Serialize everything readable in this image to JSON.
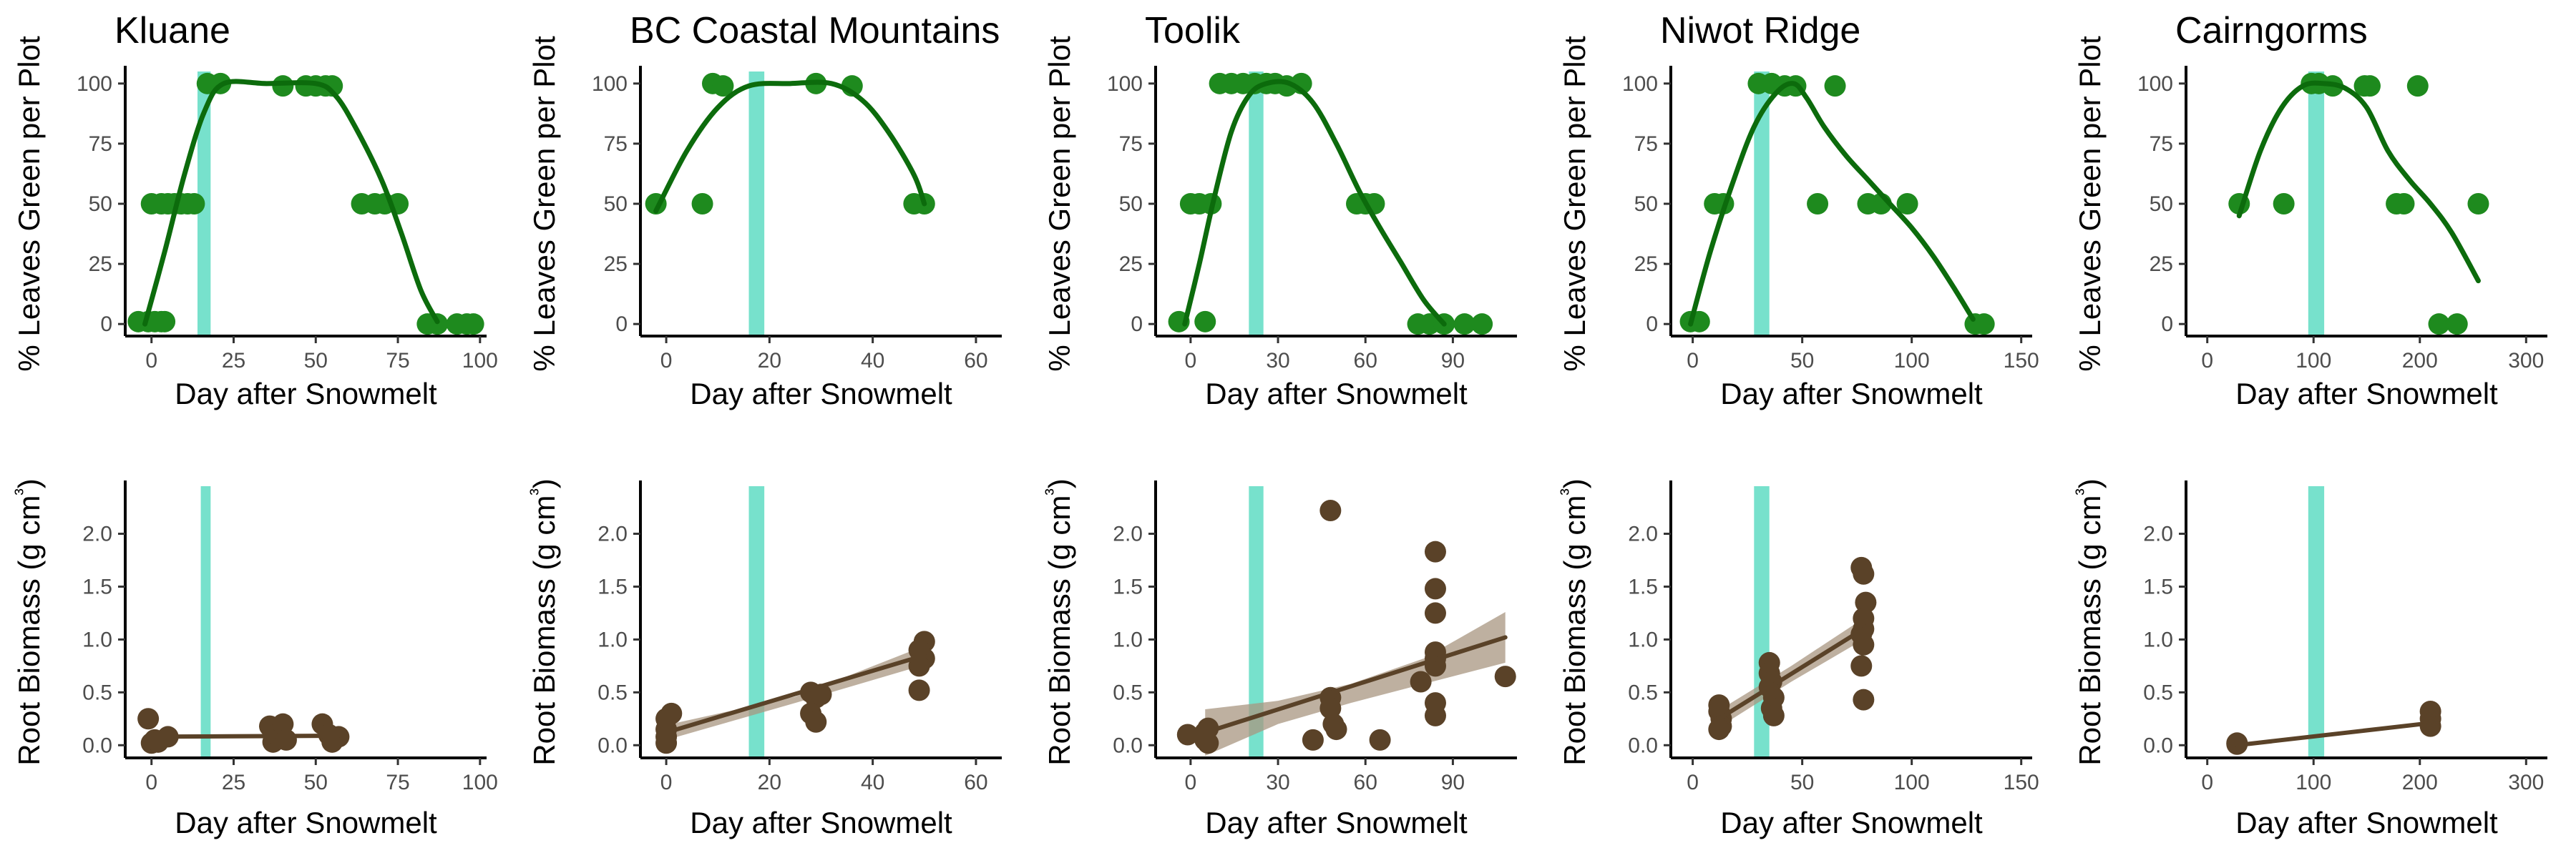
{
  "colors": {
    "leaf_points": "#1e8a1e",
    "leaf_curve": "#0c6b0c",
    "root_points": "#5a4228",
    "root_line": "#5a4228",
    "root_ribbon": "#a89580",
    "snowmelt_band": "#5fdcc3"
  },
  "chart_data": [
    {
      "type": "scatter",
      "title": "Kluane",
      "xlabel": "Day after Snowmelt",
      "ylabel": "% Leaves Green per Plot",
      "xlim": [
        -8,
        102
      ],
      "ylim": [
        -5,
        105
      ],
      "xticks": [
        0,
        25,
        50,
        75,
        100
      ],
      "yticks": [
        0,
        25,
        50,
        75,
        100
      ],
      "band": [
        14,
        18
      ],
      "points": [
        [
          -4,
          1
        ],
        [
          -1,
          1
        ],
        [
          1,
          1
        ],
        [
          3,
          1
        ],
        [
          4,
          1
        ],
        [
          0,
          50
        ],
        [
          3,
          50
        ],
        [
          5,
          50
        ],
        [
          7,
          50
        ],
        [
          9,
          50
        ],
        [
          11,
          50
        ],
        [
          13,
          50
        ],
        [
          17,
          100
        ],
        [
          21,
          100
        ],
        [
          40,
          99
        ],
        [
          47,
          99
        ],
        [
          50,
          99
        ],
        [
          53,
          99
        ],
        [
          55,
          99
        ],
        [
          64,
          50
        ],
        [
          68,
          50
        ],
        [
          71,
          50
        ],
        [
          75,
          50
        ],
        [
          84,
          0
        ],
        [
          87,
          0
        ],
        [
          93,
          0
        ],
        [
          96,
          0
        ],
        [
          98,
          0
        ]
      ],
      "curve": [
        [
          -2,
          0
        ],
        [
          4,
          30
        ],
        [
          10,
          62
        ],
        [
          16,
          88
        ],
        [
          22,
          100
        ],
        [
          35,
          100
        ],
        [
          50,
          100
        ],
        [
          56,
          95
        ],
        [
          62,
          82
        ],
        [
          70,
          60
        ],
        [
          76,
          38
        ],
        [
          82,
          14
        ],
        [
          87,
          1
        ]
      ]
    },
    {
      "type": "scatter",
      "title": "BC Coastal Mountains",
      "xlabel": "Day after Snowmelt",
      "ylabel": "% Leaves Green per Plot",
      "xlim": [
        -5,
        65
      ],
      "ylim": [
        -5,
        105
      ],
      "xticks": [
        0,
        20,
        40,
        60
      ],
      "yticks": [
        0,
        25,
        50,
        75,
        100
      ],
      "band": [
        16,
        19
      ],
      "points": [
        [
          -2,
          50
        ],
        [
          7,
          50
        ],
        [
          9,
          100
        ],
        [
          11,
          99
        ],
        [
          29,
          100
        ],
        [
          36,
          99
        ],
        [
          48,
          50
        ],
        [
          50,
          50
        ]
      ],
      "curve": [
        [
          -2,
          47
        ],
        [
          4,
          72
        ],
        [
          10,
          90
        ],
        [
          16,
          99
        ],
        [
          24,
          100
        ],
        [
          32,
          100
        ],
        [
          38,
          93
        ],
        [
          43,
          80
        ],
        [
          48,
          62
        ],
        [
          50,
          50
        ]
      ]
    },
    {
      "type": "scatter",
      "title": "Toolik",
      "xlabel": "Day after Snowmelt",
      "ylabel": "% Leaves Green per Plot",
      "xlim": [
        -12,
        112
      ],
      "ylim": [
        -5,
        105
      ],
      "xticks": [
        0,
        30,
        60,
        90
      ],
      "yticks": [
        0,
        25,
        50,
        75,
        100
      ],
      "band": [
        20,
        25
      ],
      "points": [
        [
          -4,
          1
        ],
        [
          0,
          50
        ],
        [
          3,
          50
        ],
        [
          5,
          1
        ],
        [
          7,
          50
        ],
        [
          10,
          100
        ],
        [
          14,
          100
        ],
        [
          18,
          100
        ],
        [
          22,
          100
        ],
        [
          26,
          100
        ],
        [
          29,
          100
        ],
        [
          33,
          99
        ],
        [
          38,
          100
        ],
        [
          57,
          50
        ],
        [
          60,
          50
        ],
        [
          63,
          50
        ],
        [
          78,
          0
        ],
        [
          82,
          0
        ],
        [
          87,
          0
        ],
        [
          94,
          0
        ],
        [
          100,
          0
        ]
      ],
      "curve": [
        [
          -2,
          0
        ],
        [
          3,
          25
        ],
        [
          8,
          52
        ],
        [
          14,
          80
        ],
        [
          20,
          95
        ],
        [
          26,
          100
        ],
        [
          34,
          100
        ],
        [
          42,
          92
        ],
        [
          50,
          75
        ],
        [
          58,
          55
        ],
        [
          65,
          40
        ],
        [
          72,
          26
        ],
        [
          80,
          10
        ],
        [
          87,
          0
        ]
      ]
    },
    {
      "type": "scatter",
      "title": "Niwot Ridge",
      "xlabel": "Day after Snowmelt",
      "ylabel": "% Leaves Green per Plot",
      "xlim": [
        -10,
        155
      ],
      "ylim": [
        -5,
        105
      ],
      "xticks": [
        0,
        50,
        100,
        150
      ],
      "yticks": [
        0,
        25,
        50,
        75,
        100
      ],
      "band": [
        28,
        35
      ],
      "points": [
        [
          -1,
          1
        ],
        [
          3,
          1
        ],
        [
          10,
          50
        ],
        [
          14,
          50
        ],
        [
          30,
          100
        ],
        [
          36,
          100
        ],
        [
          42,
          99
        ],
        [
          47,
          99
        ],
        [
          65,
          99
        ],
        [
          57,
          50
        ],
        [
          80,
          50
        ],
        [
          86,
          50
        ],
        [
          98,
          50
        ],
        [
          129,
          0
        ],
        [
          133,
          0
        ]
      ],
      "curve": [
        [
          -1,
          0
        ],
        [
          8,
          30
        ],
        [
          18,
          58
        ],
        [
          28,
          82
        ],
        [
          38,
          96
        ],
        [
          46,
          100
        ],
        [
          52,
          94
        ],
        [
          60,
          82
        ],
        [
          70,
          70
        ],
        [
          80,
          60
        ],
        [
          90,
          50
        ],
        [
          100,
          40
        ],
        [
          110,
          28
        ],
        [
          120,
          14
        ],
        [
          128,
          2
        ]
      ]
    },
    {
      "type": "scatter",
      "title": "Cairngorms",
      "xlabel": "Day after Snowmelt",
      "ylabel": "% Leaves Green per Plot",
      "xlim": [
        -20,
        320
      ],
      "ylim": [
        -5,
        105
      ],
      "xticks": [
        0,
        100,
        200,
        300
      ],
      "yticks": [
        0,
        25,
        50,
        75,
        100
      ],
      "band": [
        95,
        110
      ],
      "points": [
        [
          30,
          50
        ],
        [
          72,
          50
        ],
        [
          98,
          100
        ],
        [
          105,
          100
        ],
        [
          118,
          99
        ],
        [
          148,
          99
        ],
        [
          153,
          99
        ],
        [
          178,
          50
        ],
        [
          185,
          50
        ],
        [
          198,
          99
        ],
        [
          218,
          0
        ],
        [
          235,
          0
        ],
        [
          255,
          50
        ]
      ],
      "curve": [
        [
          30,
          45
        ],
        [
          50,
          72
        ],
        [
          70,
          90
        ],
        [
          90,
          99
        ],
        [
          110,
          100
        ],
        [
          130,
          98
        ],
        [
          150,
          90
        ],
        [
          170,
          72
        ],
        [
          190,
          60
        ],
        [
          210,
          50
        ],
        [
          230,
          38
        ],
        [
          255,
          18
        ]
      ]
    },
    {
      "type": "scatter",
      "title": "",
      "xlabel": "Day after Snowmelt",
      "ylabel": "Root Biomass (g cm³)",
      "xlim": [
        -8,
        102
      ],
      "ylim": [
        -0.12,
        2.45
      ],
      "xticks": [
        0,
        25,
        50,
        75,
        100
      ],
      "yticks": [
        0.0,
        0.5,
        1.0,
        1.5,
        2.0
      ],
      "band": [
        15,
        18
      ],
      "points": [
        [
          -1,
          0.25
        ],
        [
          0,
          0.02
        ],
        [
          1,
          0.05
        ],
        [
          2,
          0.03
        ],
        [
          5,
          0.08
        ],
        [
          36,
          0.18
        ],
        [
          37,
          0.03
        ],
        [
          38,
          0.1
        ],
        [
          40,
          0.2
        ],
        [
          41,
          0.05
        ],
        [
          52,
          0.2
        ],
        [
          54,
          0.1
        ],
        [
          55,
          0.03
        ],
        [
          57,
          0.08
        ]
      ],
      "trend": {
        "x": [
          -1,
          57
        ],
        "y": [
          0.08,
          0.09
        ]
      },
      "ribbon": {
        "x": [
          -1,
          57
        ],
        "lower": [
          0.07,
          0.07
        ],
        "upper": [
          0.1,
          0.11
        ]
      }
    },
    {
      "type": "scatter",
      "title": "",
      "xlabel": "Day after Snowmelt",
      "ylabel": "Root Biomass (g cm³)",
      "xlim": [
        -5,
        65
      ],
      "ylim": [
        -0.12,
        2.45
      ],
      "xticks": [
        0,
        20,
        40,
        60
      ],
      "yticks": [
        0.0,
        0.5,
        1.0,
        1.5,
        2.0
      ],
      "band": [
        16,
        19
      ],
      "points": [
        [
          0,
          0.25
        ],
        [
          0,
          0.15
        ],
        [
          0,
          0.08
        ],
        [
          0,
          0.02
        ],
        [
          1,
          0.3
        ],
        [
          28,
          0.5
        ],
        [
          29,
          0.45
        ],
        [
          28,
          0.3
        ],
        [
          29,
          0.22
        ],
        [
          30,
          0.48
        ],
        [
          50,
          0.98
        ],
        [
          49,
          0.9
        ],
        [
          50,
          0.82
        ],
        [
          49,
          0.75
        ],
        [
          49,
          0.52
        ]
      ],
      "trend": {
        "x": [
          0,
          50
        ],
        "y": [
          0.12,
          0.85
        ]
      },
      "ribbon": {
        "x": [
          0,
          25,
          50
        ],
        "lower": [
          0.05,
          0.4,
          0.76
        ],
        "upper": [
          0.19,
          0.46,
          0.94
        ]
      }
    },
    {
      "type": "scatter",
      "title": "",
      "xlabel": "Day after Snowmelt",
      "ylabel": "Root Biomass (g cm³)",
      "xlim": [
        -12,
        112
      ],
      "ylim": [
        -0.12,
        2.45
      ],
      "xticks": [
        0,
        30,
        60,
        90
      ],
      "yticks": [
        0.0,
        0.5,
        1.0,
        1.5,
        2.0
      ],
      "band": [
        20,
        25
      ],
      "points": [
        [
          -1,
          0.1
        ],
        [
          5,
          0.05
        ],
        [
          5,
          0.12
        ],
        [
          6,
          0.16
        ],
        [
          6,
          0.02
        ],
        [
          42,
          0.05
        ],
        [
          48,
          2.22
        ],
        [
          48,
          0.45
        ],
        [
          48,
          0.35
        ],
        [
          49,
          0.2
        ],
        [
          50,
          0.15
        ],
        [
          65,
          0.05
        ],
        [
          79,
          0.6
        ],
        [
          84,
          1.83
        ],
        [
          84,
          1.48
        ],
        [
          84,
          1.25
        ],
        [
          84,
          0.88
        ],
        [
          84,
          0.82
        ],
        [
          84,
          0.75
        ],
        [
          84,
          0.4
        ],
        [
          84,
          0.28
        ],
        [
          108,
          0.65
        ]
      ],
      "trend": {
        "x": [
          5,
          108
        ],
        "y": [
          0.12,
          1.02
        ]
      },
      "ribbon": {
        "x": [
          5,
          30,
          55,
          80,
          108
        ],
        "lower": [
          -0.1,
          0.2,
          0.4,
          0.58,
          0.78
        ],
        "upper": [
          0.34,
          0.42,
          0.58,
          0.82,
          1.26
        ]
      }
    },
    {
      "type": "scatter",
      "title": "",
      "xlabel": "Day after Snowmelt",
      "ylabel": "Root Biomass (g cm³)",
      "xlim": [
        -10,
        155
      ],
      "ylim": [
        -0.12,
        2.45
      ],
      "xticks": [
        0,
        50,
        100,
        150
      ],
      "yticks": [
        0.0,
        0.5,
        1.0,
        1.5,
        2.0
      ],
      "band": [
        28,
        35
      ],
      "points": [
        [
          12,
          0.38
        ],
        [
          12,
          0.32
        ],
        [
          13,
          0.25
        ],
        [
          13,
          0.18
        ],
        [
          12,
          0.15
        ],
        [
          35,
          0.78
        ],
        [
          35,
          0.68
        ],
        [
          36,
          0.6
        ],
        [
          35,
          0.55
        ],
        [
          37,
          0.45
        ],
        [
          36,
          0.35
        ],
        [
          37,
          0.28
        ],
        [
          77,
          1.68
        ],
        [
          78,
          1.62
        ],
        [
          79,
          1.35
        ],
        [
          78,
          1.2
        ],
        [
          78,
          1.1
        ],
        [
          77,
          1.05
        ],
        [
          78,
          0.95
        ],
        [
          77,
          0.75
        ],
        [
          78,
          0.43
        ]
      ],
      "trend": {
        "x": [
          12,
          78
        ],
        "y": [
          0.25,
          1.1
        ]
      },
      "ribbon": {
        "x": [
          12,
          45,
          78
        ],
        "lower": [
          0.17,
          0.6,
          1.0
        ],
        "upper": [
          0.33,
          0.75,
          1.2
        ]
      }
    },
    {
      "type": "scatter",
      "title": "",
      "xlabel": "Day after Snowmelt",
      "ylabel": "Root Biomass (g cm³)",
      "xlim": [
        -20,
        320
      ],
      "ylim": [
        -0.12,
        2.45
      ],
      "xticks": [
        0,
        100,
        200,
        300
      ],
      "yticks": [
        0.0,
        0.5,
        1.0,
        1.5,
        2.0
      ],
      "band": [
        95,
        110
      ],
      "points": [
        [
          28,
          0.02
        ],
        [
          28,
          0.01
        ],
        [
          210,
          0.32
        ],
        [
          210,
          0.25
        ],
        [
          210,
          0.18
        ]
      ],
      "trend": {
        "x": [
          28,
          210
        ],
        "y": [
          0.0,
          0.21
        ]
      }
    }
  ]
}
